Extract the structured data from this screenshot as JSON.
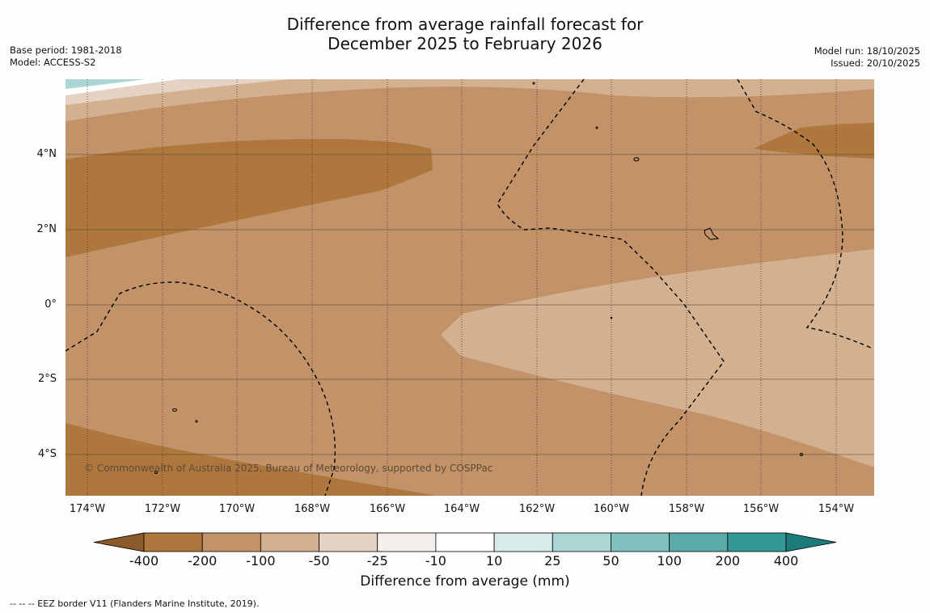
{
  "title_line1": "Difference from average rainfall forecast for",
  "title_line2": "December 2025 to February 2026",
  "base_period": "Base period: 1981-2018",
  "model": "Model: ACCESS-S2",
  "model_run": "Model run: 18/10/2025",
  "issued": "Issued: 20/10/2025",
  "copyright": "© Commonwealth of Australia 2025, Bureau of Meteorology, supported by COSPPac",
  "footnote": "-- -- -- EEZ border V11 (Flanders Marine Institute, 2019).",
  "lat_labels": [
    "4°N",
    "2°N",
    "0°",
    "2°S",
    "4°S"
  ],
  "lon_labels": [
    "174°W",
    "172°W",
    "170°W",
    "168°W",
    "166°W",
    "164°W",
    "162°W",
    "160°W",
    "158°W",
    "156°W",
    "154°W"
  ],
  "colorbar": {
    "label": "Difference from average (mm)",
    "ticks": [
      "-400",
      "-200",
      "-100",
      "-50",
      "-25",
      "-10",
      "10",
      "25",
      "50",
      "100",
      "200",
      "400"
    ],
    "colors": [
      "#8b5a2b",
      "#ae773d",
      "#c29368",
      "#d2b090",
      "#e6d2c2",
      "#f4efea",
      "#ffffff",
      "#d7ebe9",
      "#acd6d4",
      "#80c0be",
      "#5aaaa8",
      "#339896",
      "#1c7c7a"
    ]
  }
}
